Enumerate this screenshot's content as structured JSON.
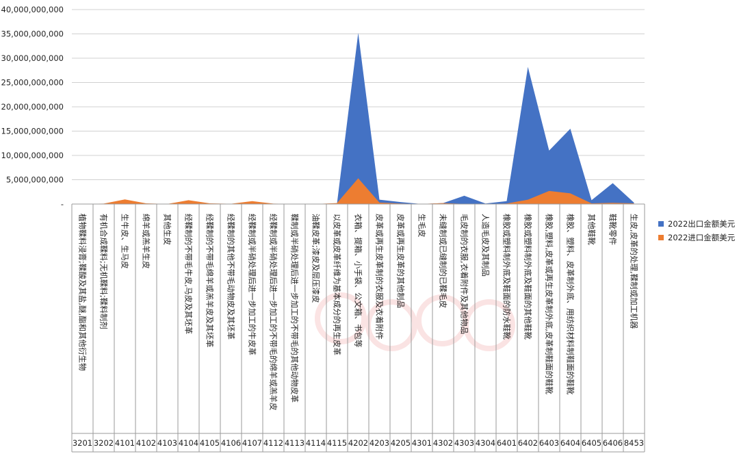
{
  "colors": {
    "export": "#4472C4",
    "import": "#ED7D31",
    "grid": "#d0d0d0",
    "axis": "#9a9a9a"
  },
  "chart_data": {
    "type": "area",
    "title": "",
    "ylim": [
      0,
      40000000000
    ],
    "yticks": [
      {
        "value": 0,
        "label": "-"
      },
      {
        "value": 5000000000,
        "label": "5,000,000,000"
      },
      {
        "value": 10000000000,
        "label": "10,000,000,000"
      },
      {
        "value": 15000000000,
        "label": "15,000,000,000"
      },
      {
        "value": 20000000000,
        "label": "20,000,000,000"
      },
      {
        "value": 25000000000,
        "label": "25,000,000,000"
      },
      {
        "value": 30000000000,
        "label": "30,000,000,000"
      },
      {
        "value": 35000000000,
        "label": "35,000,000,000"
      },
      {
        "value": 40000000000,
        "label": "40,000,000,000"
      }
    ],
    "legend_position": "right",
    "categories": [
      {
        "code": "3201",
        "label": "植物鞣料浸膏;鞣酸及其盐,醚,酯和其他衍生物"
      },
      {
        "code": "3202",
        "label": "有机合成鞣料;无机鞣料;鞣料制剂"
      },
      {
        "code": "4101",
        "label": "生牛皮、生马皮"
      },
      {
        "code": "4102",
        "label": "绵羊或羔羊生皮"
      },
      {
        "code": "4103",
        "label": "其他生皮"
      },
      {
        "code": "4104",
        "label": "经鞣制的不带毛牛皮,马皮及其坯革"
      },
      {
        "code": "4105",
        "label": "经鞣制的不带毛绵羊或羔羊皮及其坯革"
      },
      {
        "code": "4106",
        "label": "经鞣制的其他不带毛动物皮及其坯革"
      },
      {
        "code": "4107",
        "label": "经鞣制或半硝处理后进一步加工的牛皮革"
      },
      {
        "code": "4112",
        "label": "经鞣制或半硝处理后进一步加工的不带毛的绵羊或羔羊皮"
      },
      {
        "code": "4113",
        "label": "鞣制或半硝处理后进一步加工的不带毛的其他动物皮革"
      },
      {
        "code": "4114",
        "label": "油鞣皮革;漆皮及层压漆皮"
      },
      {
        "code": "4115",
        "label": "以皮革或皮革纤维为基本成分的再生皮革"
      },
      {
        "code": "4202",
        "label": "衣箱、提箱、小手袋、公文箱、书包等"
      },
      {
        "code": "4203",
        "label": "皮革或再生皮革制的衣服及衣着附件"
      },
      {
        "code": "4205",
        "label": "皮革或再生皮革的其他制品"
      },
      {
        "code": "4301",
        "label": "生毛皮"
      },
      {
        "code": "4302",
        "label": "未缝制或已缝制的已鞣毛皮"
      },
      {
        "code": "4303",
        "label": "毛皮制的衣服,衣着附件及其他物品"
      },
      {
        "code": "4304",
        "label": "人造毛皮及其制品"
      },
      {
        "code": "6401",
        "label": "橡胶或塑料制外底及鞋面的防水鞋靴"
      },
      {
        "code": "6402",
        "label": "橡胶或塑料制外底及鞋面的其他鞋靴"
      },
      {
        "code": "6403",
        "label": "橡胶,塑料,皮革或再生皮革制外底,皮革制鞋面的鞋靴"
      },
      {
        "code": "6404",
        "label": "橡胶、塑料、皮革制外底、用纺织材料制鞋面的鞋靴"
      },
      {
        "code": "6405",
        "label": "其他鞋靴"
      },
      {
        "code": "6406",
        "label": "鞋靴零件"
      },
      {
        "code": "8453",
        "label": "生皮,皮革的处理,鞣制或加工机器"
      }
    ],
    "series": [
      {
        "name": "2022出口金额美元",
        "values": [
          10000000,
          50000000,
          10000000,
          5000000,
          5000000,
          20000000,
          10000000,
          20000000,
          50000000,
          10000000,
          5000000,
          10000000,
          100000000,
          35200000000,
          900000000,
          400000000,
          5000000,
          200000000,
          1700000000,
          100000000,
          600000000,
          28200000000,
          11000000000,
          15500000000,
          800000000,
          4300000000,
          300000000
        ]
      },
      {
        "name": "2022进口金额美元",
        "values": [
          20000000,
          80000000,
          950000000,
          150000000,
          10000000,
          800000000,
          150000000,
          60000000,
          600000000,
          80000000,
          20000000,
          20000000,
          200000000,
          5300000000,
          300000000,
          100000000,
          20000000,
          200000000,
          30000000,
          20000000,
          100000000,
          900000000,
          2700000000,
          2200000000,
          150000000,
          250000000,
          150000000
        ]
      }
    ]
  }
}
